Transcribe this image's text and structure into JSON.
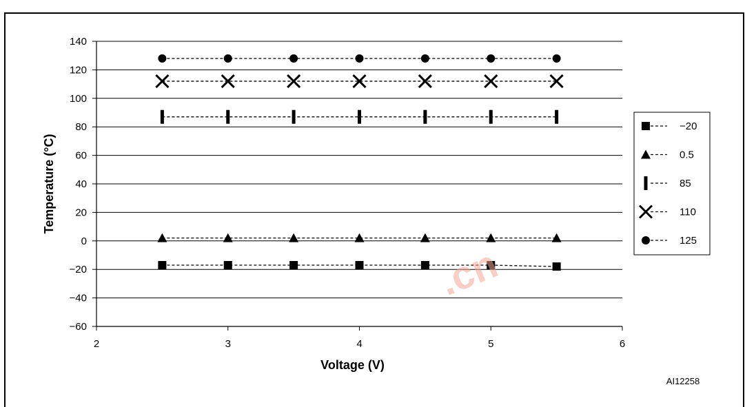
{
  "figure": {
    "top_caption": "",
    "figure_id": "AI12258",
    "watermark": ".cn"
  },
  "chart_data": {
    "type": "line",
    "xlabel": "Voltage (V)",
    "ylabel": "Temperature (°C)",
    "xlim": [
      2,
      6
    ],
    "ylim": [
      -60,
      140
    ],
    "x_ticks": [
      2,
      3,
      4,
      5,
      6
    ],
    "y_ticks": [
      -60,
      -40,
      -20,
      0,
      20,
      40,
      60,
      80,
      100,
      120,
      140
    ],
    "grid": "horizontal",
    "legend_position": "right",
    "x": [
      2.5,
      3,
      3.5,
      4,
      4.5,
      5,
      5.5
    ],
    "series": [
      {
        "name": "−20",
        "marker": "square",
        "values": [
          -17,
          -17,
          -17,
          -17,
          -17,
          -17,
          -18
        ]
      },
      {
        "name": "0.5",
        "marker": "triangle",
        "values": [
          2,
          2,
          2,
          2,
          2,
          2,
          2
        ]
      },
      {
        "name": "85",
        "marker": "bar",
        "values": [
          87,
          87,
          87,
          87,
          87,
          87,
          87
        ]
      },
      {
        "name": "110",
        "marker": "cross",
        "values": [
          112,
          112,
          112,
          112,
          112,
          112,
          112
        ]
      },
      {
        "name": "125",
        "marker": "circle",
        "values": [
          128,
          128,
          128,
          128,
          128,
          128,
          128
        ]
      }
    ]
  }
}
